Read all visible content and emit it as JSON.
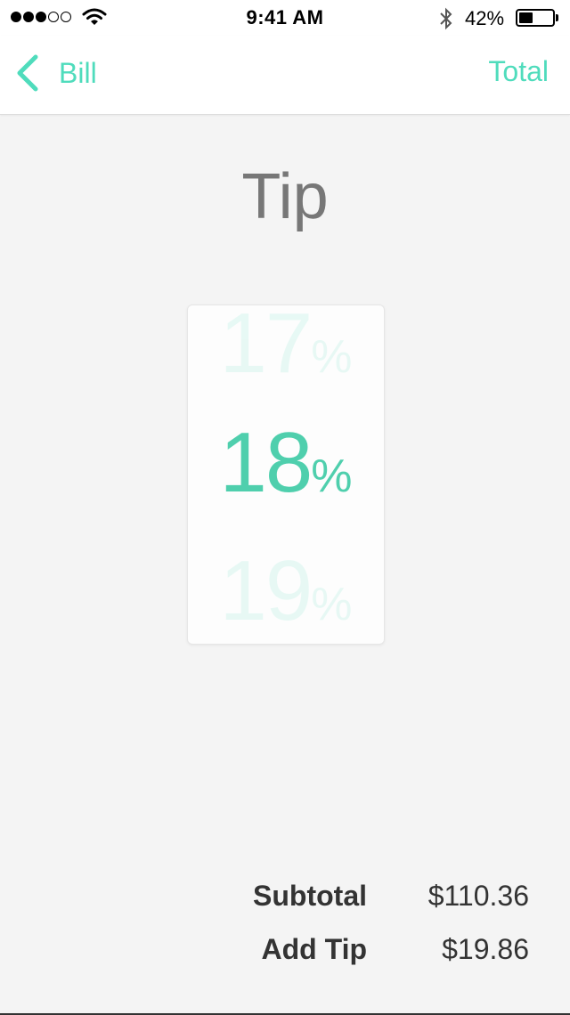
{
  "status_bar": {
    "time": "9:41 AM",
    "battery_percent": "42%",
    "battery_level": 0.42,
    "signal_bars_filled": 3,
    "signal_bars_total": 5
  },
  "nav": {
    "back_label": "Bill",
    "right_label": "Total"
  },
  "page": {
    "title": "Tip"
  },
  "picker": {
    "prev_value": "17",
    "selected_value": "18",
    "next_value": "19",
    "unit": "%"
  },
  "summary": {
    "subtotal_label": "Subtotal",
    "subtotal_value": "$110.36",
    "tip_label": "Add Tip",
    "tip_value": "$19.86"
  },
  "colors": {
    "accent": "#4fdcbc",
    "background": "#f4f4f4",
    "title": "#777777",
    "text": "#333333"
  },
  "icons": {
    "back": "chevron-left-icon",
    "wifi": "wifi-icon",
    "bluetooth": "bluetooth-icon",
    "battery": "battery-icon"
  }
}
